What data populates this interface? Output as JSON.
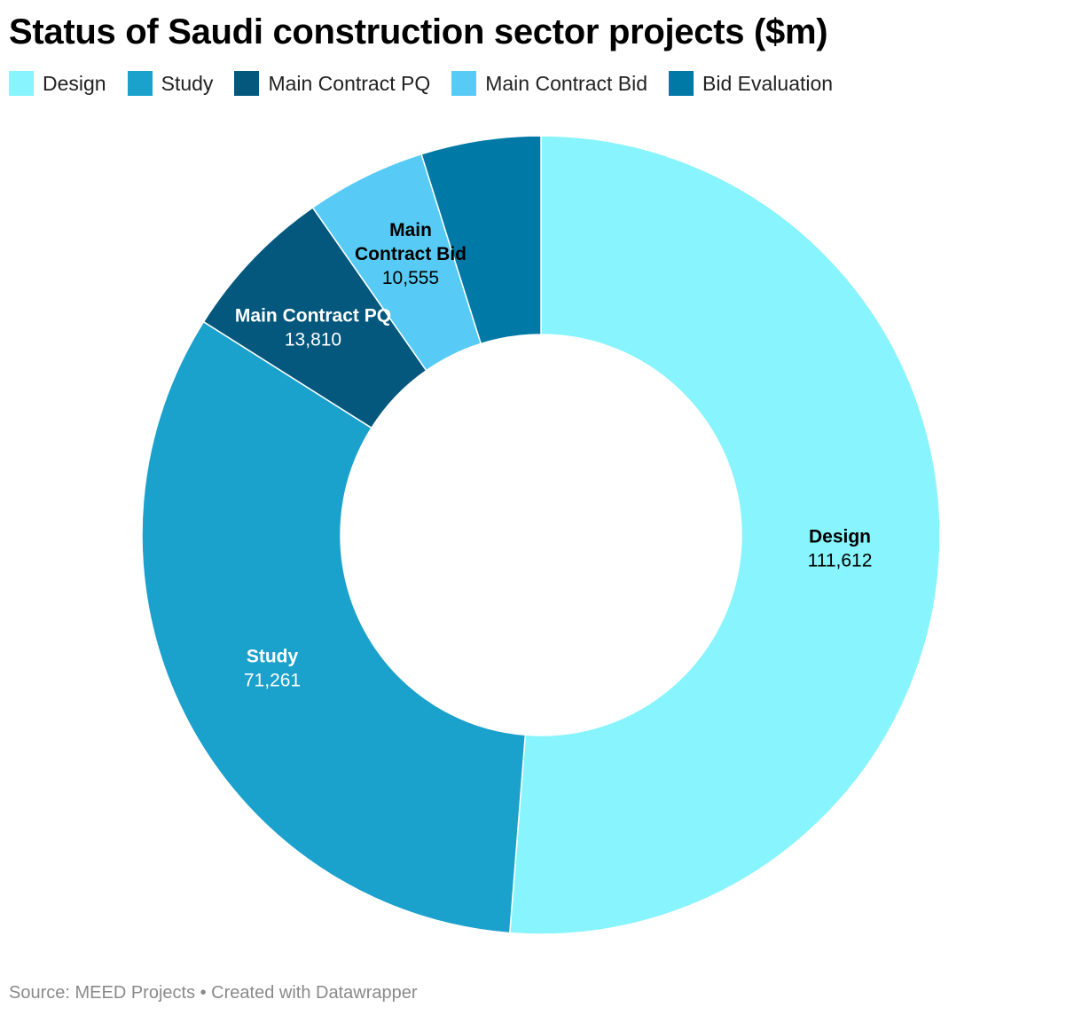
{
  "chart_data": {
    "type": "pie",
    "variant": "donut",
    "title": "Status of Saudi construction sector projects ($m)",
    "categories": [
      "Design",
      "Study",
      "Main Contract PQ",
      "Main Contract Bid",
      "Bid Evaluation"
    ],
    "values": [
      111612,
      71261,
      13810,
      10555,
      10555
    ],
    "value_labels": [
      "111,612",
      "71,261",
      "13,810",
      "10,555",
      ""
    ],
    "slice_labels": [
      {
        "lines": [
          "Design"
        ],
        "value": "111,612",
        "text_color": "#000000"
      },
      {
        "lines": [
          "Study"
        ],
        "value": "71,261",
        "text_color": "#ffffff"
      },
      {
        "lines": [
          "Main Contract PQ"
        ],
        "value": "13,810",
        "text_color": "#ffffff"
      },
      {
        "lines": [
          "Main",
          "Contract Bid"
        ],
        "value": "10,555",
        "text_color": "#000000"
      },
      {
        "lines": [],
        "value": "",
        "text_color": "#ffffff"
      }
    ],
    "colors": [
      "#88f4fd",
      "#1aa1cc",
      "#04587d",
      "#57cbf5",
      "#0079a6"
    ],
    "legend_position": "top-left"
  },
  "footer": {
    "source": "Source: MEED Projects • Created with Datawrapper"
  }
}
